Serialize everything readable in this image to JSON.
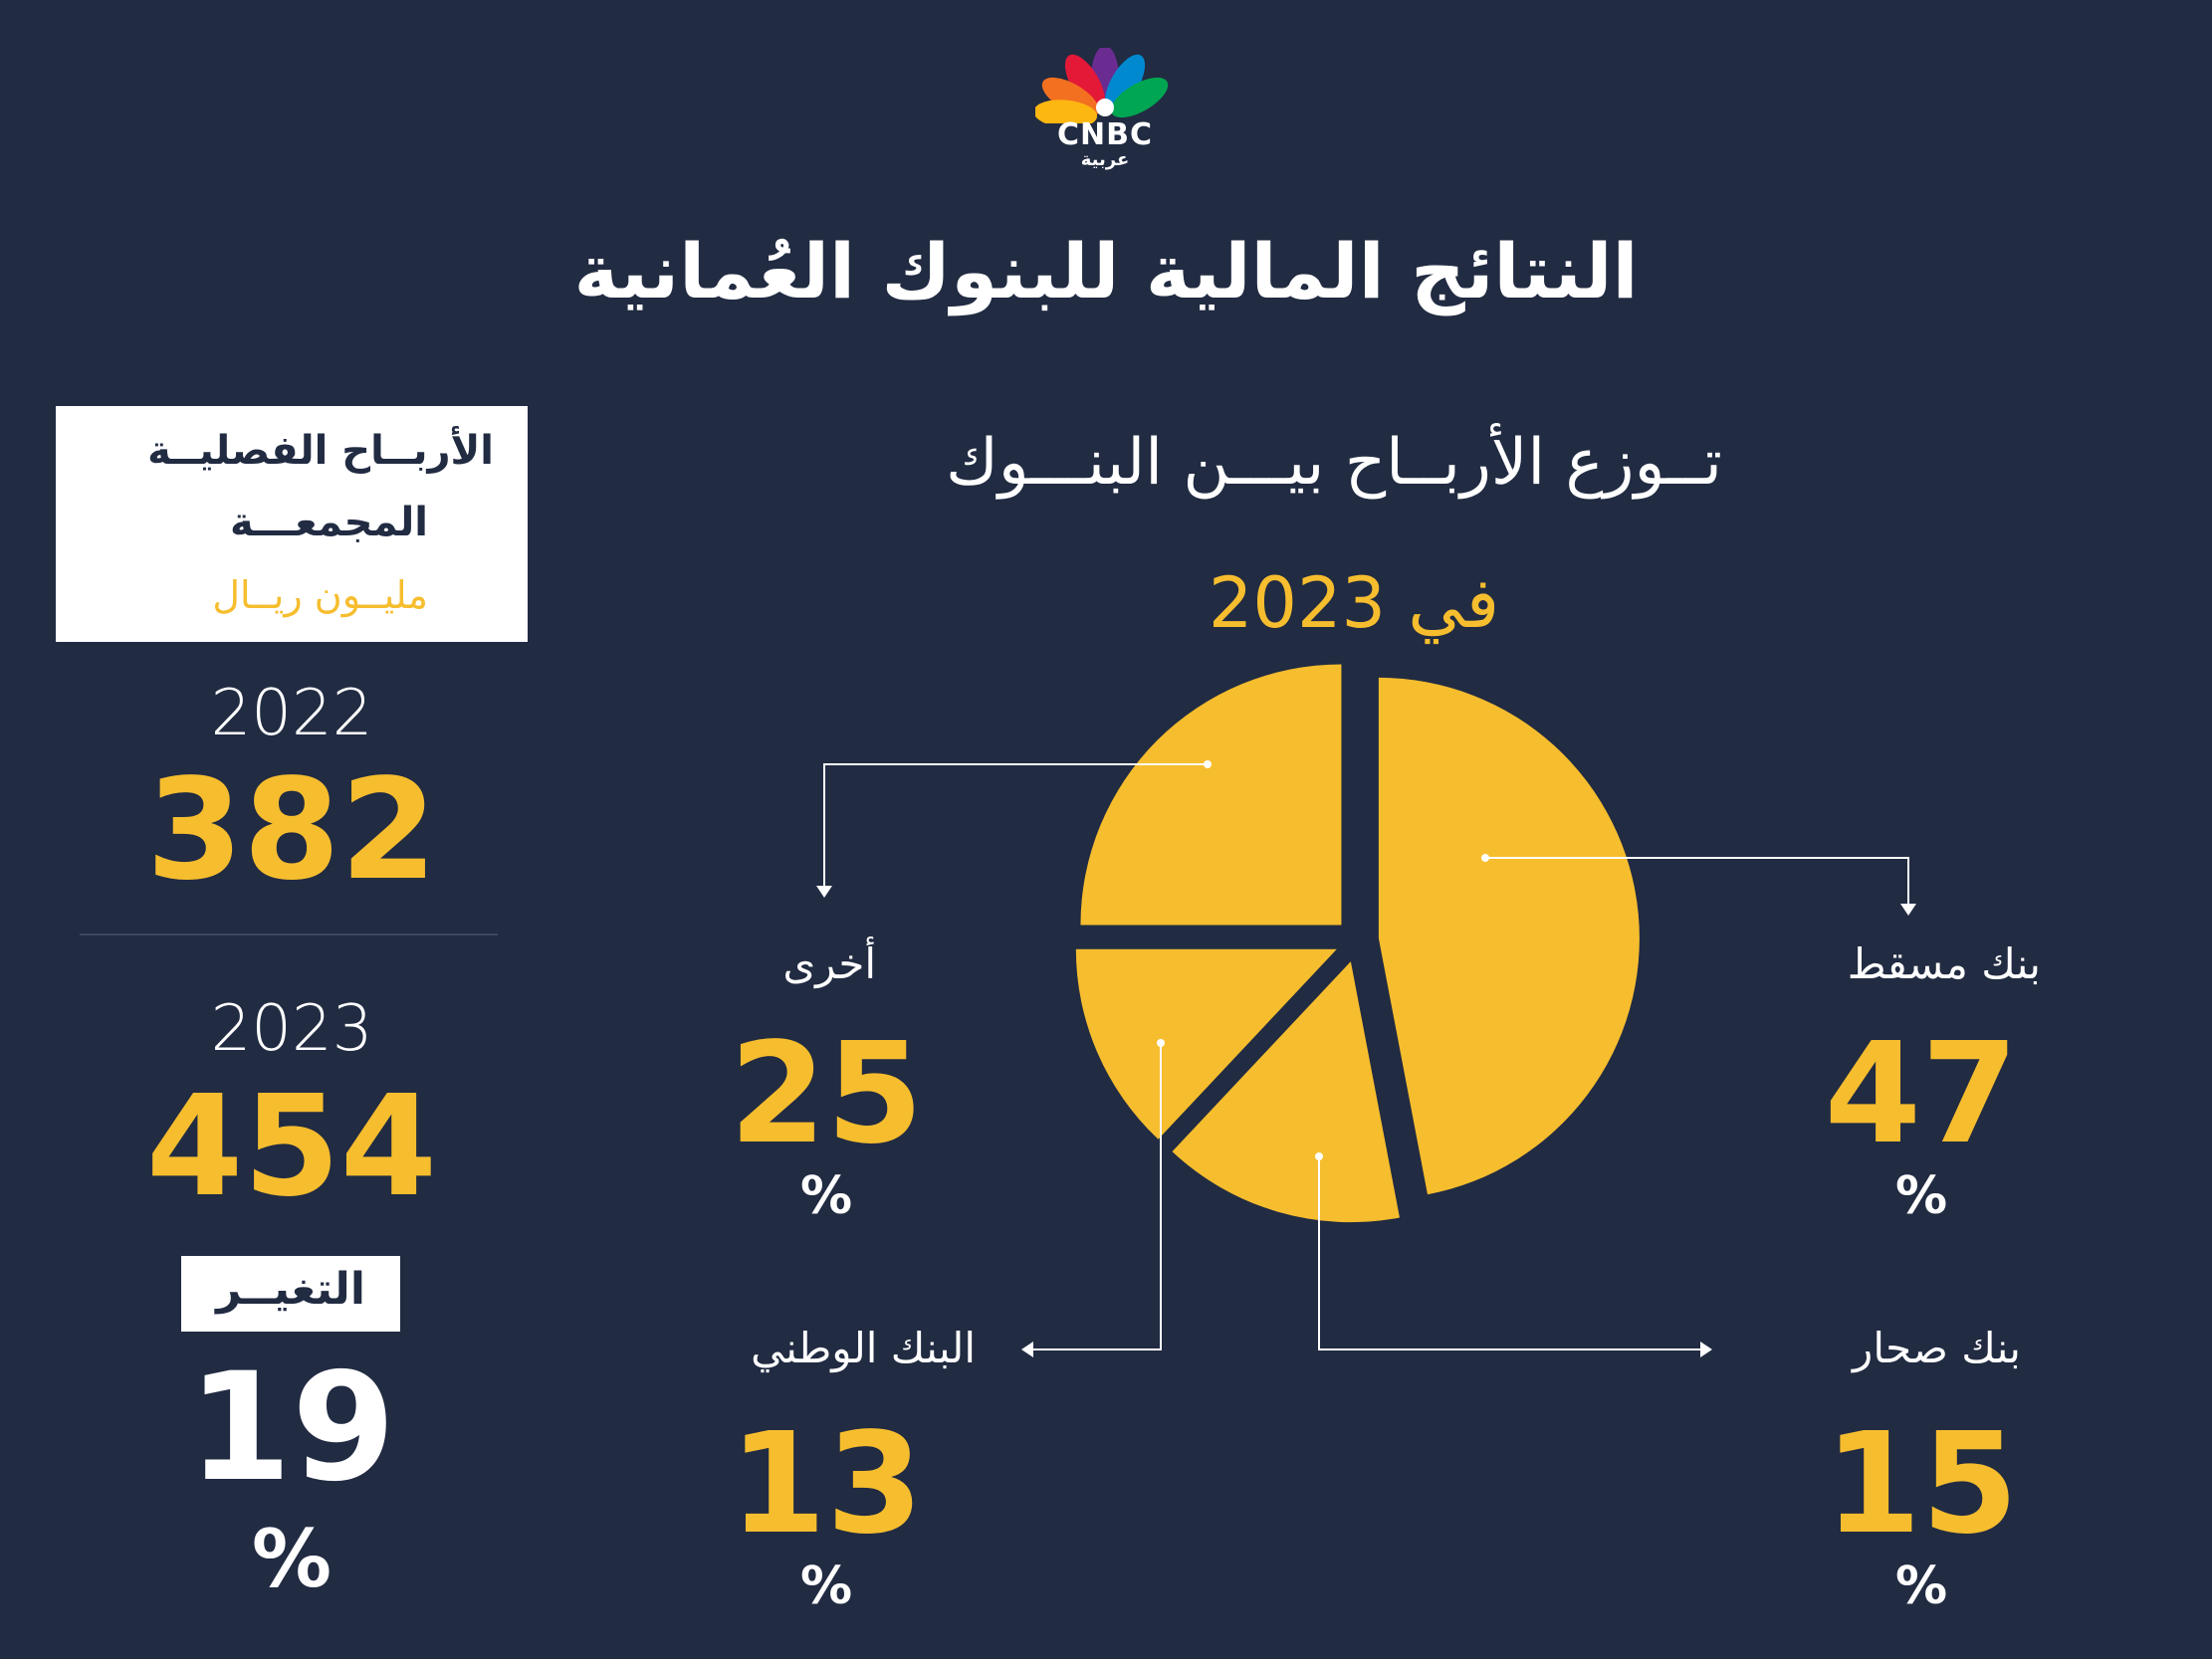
{
  "logo": {
    "text": "CNBC",
    "subtext": "عربية"
  },
  "header": {
    "title": "النتائج المالية للبنوك العُمانية"
  },
  "chart_header": {
    "subtitle": "تــوزع الأربــاح بيـــن البنـــوك",
    "year_title": "في 2023"
  },
  "left_panel": {
    "box_line1": "الأربــاح الفصليــة",
    "box_line2": "المجمعـــة",
    "box_unit": "مليــون ريــال",
    "year1": "2022",
    "value1": "382",
    "year2": "2023",
    "value2": "454",
    "change_label": "التغيــر",
    "change_value": "19",
    "change_unit": "%"
  },
  "labels": {
    "muscat": {
      "name": "بنك مسقط",
      "value": "47",
      "unit": "%"
    },
    "other": {
      "name": "أخرى",
      "value": "25",
      "unit": "%"
    },
    "national": {
      "name": "البنك الوطني",
      "value": "13",
      "unit": "%"
    },
    "sohar": {
      "name": "بنك صحار",
      "value": "15",
      "unit": "%"
    }
  },
  "colors": {
    "background": "#212b42",
    "accent": "#f6bd2e",
    "text": "#ffffff"
  },
  "chart_data": {
    "type": "pie",
    "title": "تــوزع الأربــاح بيـــن البنـــوك",
    "subtitle": "في 2023",
    "slices": [
      {
        "label": "بنك مسقط",
        "value": 47
      },
      {
        "label": "بنك صحار",
        "value": 15
      },
      {
        "label": "البنك الوطني",
        "value": 13
      },
      {
        "label": "أخرى",
        "value": 25
      }
    ],
    "unit": "%",
    "exploded": true
  }
}
